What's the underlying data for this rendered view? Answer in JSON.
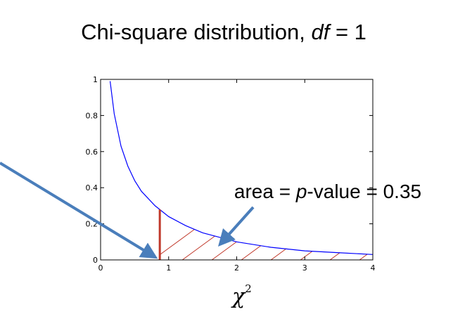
{
  "chart_data": {
    "type": "line",
    "title": [
      "Chi-square distribution, ",
      "df",
      " = 1"
    ],
    "annotation": [
      "area = ",
      "p",
      "-value = 0.35"
    ],
    "xlabel": [
      "χ",
      "2"
    ],
    "x": [
      0.14,
      0.2,
      0.3,
      0.4,
      0.5,
      0.6,
      0.8,
      1.0,
      1.25,
      1.5,
      2.0,
      2.5,
      3.0,
      3.5,
      4.0
    ],
    "series": [
      {
        "color": "#0000ff",
        "values": [
          0.99,
          0.81,
          0.63,
          0.52,
          0.44,
          0.38,
          0.3,
          0.24,
          0.19,
          0.15,
          0.1,
          0.07,
          0.05,
          0.04,
          0.03
        ]
      }
    ],
    "highlight_x": 0.87,
    "highlight_color": "#c0392b",
    "xlim": [
      0,
      4
    ],
    "ylim": [
      0,
      1
    ],
    "xticks": [
      0,
      1,
      2,
      3,
      4
    ],
    "yticks": [
      0,
      0.2,
      0.4,
      0.6,
      0.8,
      1
    ]
  }
}
